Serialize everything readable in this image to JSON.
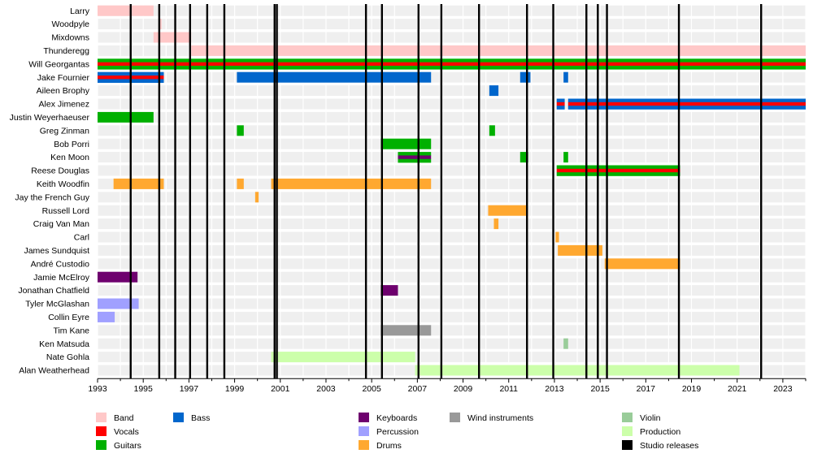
{
  "chart_data": {
    "type": "timeline",
    "xlim": [
      1993,
      2024
    ],
    "x_ticks": [
      1993,
      1995,
      1997,
      1999,
      2001,
      2003,
      2005,
      2007,
      2009,
      2011,
      2013,
      2015,
      2017,
      2019,
      2021,
      2023
    ],
    "grid": "alternating row stripes, vertical year lines",
    "legend_position": "bottom",
    "colors": {
      "band": "#ffc8c8",
      "vocals": "#ff0000",
      "guitars": "#00b000",
      "bass": "#0066cc",
      "keyboards": "#6e006e",
      "percussion": "#a0a0ff",
      "drums": "#ffa830",
      "wind": "#999999",
      "violin": "#99cc99",
      "production": "#ccffaa",
      "studio": "#000000"
    },
    "rows": [
      {
        "name": "Larry",
        "bars": [
          {
            "role": "band",
            "from": 1993.0,
            "to": 1995.45
          }
        ]
      },
      {
        "name": "Woodpyle",
        "bars": [
          {
            "role": "band",
            "from": 1995.7,
            "to": 1995.8
          }
        ]
      },
      {
        "name": "Mixdowns",
        "bars": [
          {
            "role": "band",
            "from": 1995.45,
            "to": 1997.1
          }
        ]
      },
      {
        "name": "Thunderegg",
        "bars": [
          {
            "role": "band",
            "from": 1997.1,
            "to": 2024.0
          }
        ]
      },
      {
        "name": "Will Georgantas",
        "bars": [
          {
            "role": "multi",
            "stripes": [
              "guitars",
              "vocals",
              "guitars"
            ],
            "from": 1993.0,
            "to": 2024.0
          }
        ]
      },
      {
        "name": "Jake Fournier",
        "bars": [
          {
            "role": "multi",
            "stripes": [
              "bass",
              "vocals",
              "bass"
            ],
            "from": 1993.0,
            "to": 1995.9
          },
          {
            "role": "bass",
            "from": 1999.1,
            "to": 2007.6
          },
          {
            "role": "bass",
            "from": 2011.5,
            "to": 2011.95
          },
          {
            "role": "bass",
            "from": 2013.4,
            "to": 2013.6
          }
        ]
      },
      {
        "name": "Aileen Brophy",
        "bars": [
          {
            "role": "bass",
            "from": 2010.15,
            "to": 2010.55
          }
        ]
      },
      {
        "name": "Alex Jimenez",
        "bars": [
          {
            "role": "multi",
            "stripes": [
              "bass",
              "vocals",
              "bass"
            ],
            "from": 2013.1,
            "to": 2013.45
          },
          {
            "role": "multi",
            "stripes": [
              "bass",
              "vocals",
              "bass"
            ],
            "from": 2013.6,
            "to": 2024.0
          }
        ]
      },
      {
        "name": "Justin Weyerhaeuser",
        "bars": [
          {
            "role": "guitars",
            "from": 1993.0,
            "to": 1995.45
          }
        ]
      },
      {
        "name": "Greg Zinman",
        "bars": [
          {
            "role": "guitars",
            "from": 1999.1,
            "to": 1999.4
          },
          {
            "role": "guitars",
            "from": 2010.15,
            "to": 2010.4
          }
        ]
      },
      {
        "name": "Bob Porri",
        "bars": [
          {
            "role": "guitars",
            "from": 2005.4,
            "to": 2007.6
          }
        ]
      },
      {
        "name": "Ken Moon",
        "bars": [
          {
            "role": "multi",
            "stripes": [
              "guitars",
              "keyboards",
              "guitars"
            ],
            "from": 2006.15,
            "to": 2007.6
          },
          {
            "role": "guitars",
            "from": 2011.5,
            "to": 2011.85
          },
          {
            "role": "guitars",
            "from": 2013.4,
            "to": 2013.6
          }
        ]
      },
      {
        "name": "Reese Douglas",
        "bars": [
          {
            "role": "multi",
            "stripes": [
              "guitars",
              "vocals",
              "guitars"
            ],
            "from": 2013.1,
            "to": 2018.5
          }
        ]
      },
      {
        "name": "Keith Woodfin",
        "bars": [
          {
            "role": "drums",
            "from": 1993.7,
            "to": 1995.9
          },
          {
            "role": "drums",
            "from": 1999.1,
            "to": 1999.4
          },
          {
            "role": "drums",
            "from": 2000.6,
            "to": 2007.6
          }
        ]
      },
      {
        "name": "Jay the French Guy",
        "bars": [
          {
            "role": "drums",
            "from": 1999.9,
            "to": 2000.05
          }
        ]
      },
      {
        "name": "Russell Lord",
        "bars": [
          {
            "role": "drums",
            "from": 2010.1,
            "to": 2011.8
          }
        ]
      },
      {
        "name": "Craig Van Man",
        "bars": [
          {
            "role": "drums",
            "from": 2010.35,
            "to": 2010.55
          }
        ]
      },
      {
        "name": "Carl",
        "bars": [
          {
            "role": "drums",
            "from": 2013.05,
            "to": 2013.2
          }
        ]
      },
      {
        "name": "James Sundquist",
        "bars": [
          {
            "role": "drums",
            "from": 2013.15,
            "to": 2015.1
          }
        ]
      },
      {
        "name": "André Custodio",
        "bars": [
          {
            "role": "drums",
            "from": 2015.2,
            "to": 2018.5
          }
        ]
      },
      {
        "name": "Jamie McElroy",
        "bars": [
          {
            "role": "keyboards",
            "from": 1993.0,
            "to": 1994.75
          }
        ]
      },
      {
        "name": "Jonathan Chatfield",
        "bars": [
          {
            "role": "keyboards",
            "from": 2005.4,
            "to": 2006.15
          }
        ]
      },
      {
        "name": "Tyler McGlashan",
        "bars": [
          {
            "role": "percussion",
            "from": 1993.0,
            "to": 1994.8
          }
        ]
      },
      {
        "name": "Collin Eyre",
        "bars": [
          {
            "role": "percussion",
            "from": 1993.0,
            "to": 1993.75
          }
        ]
      },
      {
        "name": "Tim Kane",
        "bars": [
          {
            "role": "wind",
            "from": 2005.4,
            "to": 2007.6
          }
        ]
      },
      {
        "name": "Ken Matsuda",
        "bars": [
          {
            "role": "violin",
            "from": 2013.4,
            "to": 2013.6
          }
        ]
      },
      {
        "name": "Nate Gohla",
        "bars": [
          {
            "role": "production",
            "from": 2000.6,
            "to": 2006.9
          }
        ]
      },
      {
        "name": "Alan Weatherhead",
        "bars": [
          {
            "role": "production",
            "from": 2006.9,
            "to": 2021.1
          }
        ]
      }
    ],
    "studio_releases": [
      1994.45,
      1995.7,
      1996.4,
      1997.05,
      1997.8,
      1998.55,
      2000.75,
      2000.85,
      2004.75,
      2005.45,
      2007.05,
      2008.05,
      2009.7,
      2011.8,
      2012.95,
      2014.4,
      2014.9,
      2015.3,
      2018.45,
      2022.05
    ],
    "legend": [
      {
        "role": "band",
        "label": "Band"
      },
      {
        "role": "vocals",
        "label": "Vocals"
      },
      {
        "role": "guitars",
        "label": "Guitars"
      },
      {
        "role": "bass",
        "label": "Bass"
      },
      {
        "role": "keyboards",
        "label": "Keyboards"
      },
      {
        "role": "percussion",
        "label": "Percussion"
      },
      {
        "role": "drums",
        "label": "Drums"
      },
      {
        "role": "wind",
        "label": "Wind instruments"
      },
      {
        "role": "violin",
        "label": "Violin"
      },
      {
        "role": "production",
        "label": "Production"
      },
      {
        "role": "studio",
        "label": "Studio releases"
      }
    ]
  }
}
